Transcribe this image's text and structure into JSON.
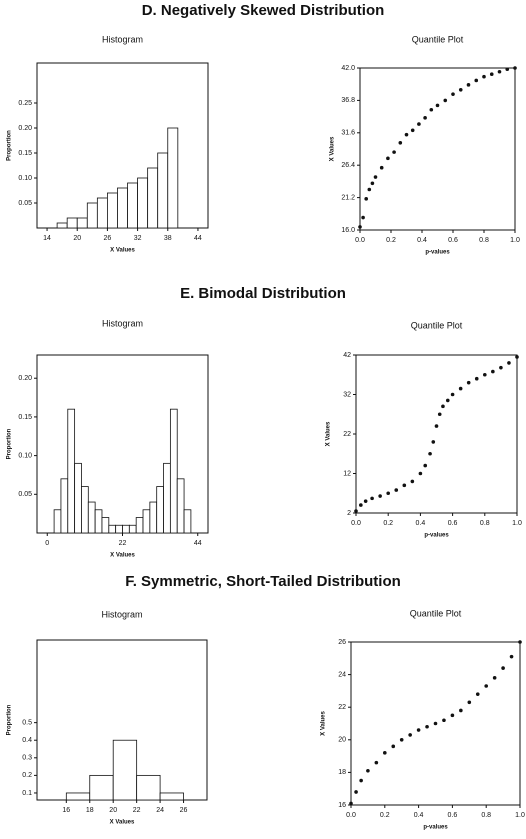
{
  "sections": [
    {
      "title": "D. Negatively Skewed Distribution"
    },
    {
      "title": "E. Bimodal Distribution"
    },
    {
      "title": "F. Symmetric, Short-Tailed Distribution"
    }
  ],
  "chart_data": [
    {
      "type": "histogram",
      "title": "Histogram",
      "x_label": "X Values",
      "y_label": "Proportion",
      "bins": [
        16,
        18,
        20,
        22,
        24,
        26,
        28,
        30,
        32,
        34,
        36,
        38,
        40
      ],
      "values": [
        0.01,
        0.02,
        0.02,
        0.05,
        0.06,
        0.07,
        0.08,
        0.09,
        0.1,
        0.12,
        0.15,
        0.2
      ],
      "xlim": [
        12,
        46
      ],
      "xticks": [
        14,
        20,
        26,
        32,
        38,
        44
      ],
      "ylim": [
        0,
        0.33
      ],
      "yticks": [
        0.05,
        {
          "value": 0.1,
          "label": "0.10"
        },
        0.15,
        {
          "value": 0.2,
          "label": "0.20"
        },
        0.25
      ],
      "color": "#ffffff"
    },
    {
      "type": "scatter",
      "title": "Quantile Plot",
      "x_label": "p-values",
      "y_label": "X Values",
      "x": [
        0,
        0.02,
        0.04,
        0.06,
        0.08,
        0.1,
        0.14,
        0.18,
        0.22,
        0.26,
        0.3,
        0.34,
        0.38,
        0.42,
        0.46,
        0.5,
        0.55,
        0.6,
        0.65,
        0.7,
        0.75,
        0.8,
        0.85,
        0.9,
        0.95,
        1
      ],
      "values": [
        16.5,
        18,
        21,
        22.5,
        23.5,
        24.5,
        26,
        27.5,
        28.5,
        30,
        31.3,
        32,
        33,
        34,
        35.3,
        36,
        36.8,
        37.8,
        38.5,
        39.3,
        40,
        40.6,
        41,
        41.4,
        41.8,
        42
      ],
      "xlim": [
        0,
        1
      ],
      "xticks": [
        {
          "value": 0,
          "label": "0.0"
        },
        0.2,
        0.4,
        0.6,
        0.8,
        {
          "value": 1,
          "label": "1.0"
        }
      ],
      "ylim": [
        16,
        42
      ],
      "yticks": [
        {
          "value": 16,
          "label": "16.0"
        },
        21.2,
        26.4,
        31.6,
        36.8,
        {
          "value": 42,
          "label": "42.0"
        }
      ],
      "color": "#111111"
    },
    {
      "type": "histogram",
      "title": "Histogram",
      "x_label": "X Values",
      "y_label": "Proportion",
      "bins": [
        2,
        4,
        6,
        8,
        10,
        12,
        14,
        16,
        18,
        20,
        22,
        24,
        26,
        28,
        30,
        32,
        34,
        36,
        38,
        40,
        42
      ],
      "values": [
        0.03,
        0.07,
        0.16,
        0.09,
        0.06,
        0.04,
        0.03,
        0.02,
        0.01,
        0.01,
        0.01,
        0.01,
        0.02,
        0.03,
        0.04,
        0.06,
        0.09,
        0.16,
        0.07,
        0.03
      ],
      "xlim": [
        -3,
        47
      ],
      "xticks": [
        0,
        22,
        44
      ],
      "ylim": [
        0,
        0.23
      ],
      "yticks": [
        0.05,
        {
          "value": 0.1,
          "label": "0.10"
        },
        0.15,
        {
          "value": 0.2,
          "label": "0.20"
        }
      ],
      "color": "#ffffff"
    },
    {
      "type": "scatter",
      "title": "Quantile Plot",
      "x_label": "p-values",
      "y_label": "X Values",
      "x": [
        0,
        0.03,
        0.06,
        0.1,
        0.15,
        0.2,
        0.25,
        0.3,
        0.35,
        0.4,
        0.43,
        0.46,
        0.48,
        0.5,
        0.52,
        0.54,
        0.57,
        0.6,
        0.65,
        0.7,
        0.75,
        0.8,
        0.85,
        0.9,
        0.95,
        1
      ],
      "values": [
        2.5,
        4,
        5,
        5.7,
        6.3,
        7,
        7.8,
        9,
        10,
        12,
        14,
        17,
        20,
        24,
        27,
        29,
        30.5,
        32,
        33.5,
        35,
        36,
        37,
        37.8,
        38.8,
        40,
        41.5
      ],
      "xlim": [
        0,
        1
      ],
      "xticks": [
        {
          "value": 0,
          "label": "0.0"
        },
        0.2,
        0.4,
        0.6,
        0.8,
        {
          "value": 1,
          "label": "1.0"
        }
      ],
      "ylim": [
        2,
        42
      ],
      "yticks": [
        2,
        12,
        22,
        32,
        42
      ],
      "color": "#111111"
    },
    {
      "type": "histogram",
      "title": "Histogram",
      "x_label": "X Values",
      "y_label": "Proportion",
      "bins": [
        16,
        18,
        20,
        22,
        24,
        26
      ],
      "values": [
        0.1,
        0.2,
        0.4,
        0.2,
        0.1
      ],
      "xlim": [
        13.5,
        28
      ],
      "xticks": [
        16,
        18,
        20,
        22,
        24,
        26
      ],
      "ylim": [
        0.06,
        0.97
      ],
      "yticks": [
        0.1,
        0.2,
        0.3,
        0.4,
        0.5
      ],
      "color": "#ffffff"
    },
    {
      "type": "scatter",
      "title": "Quantile Plot",
      "x_label": "p-values",
      "y_label": "X Values",
      "x": [
        0,
        0.03,
        0.06,
        0.1,
        0.15,
        0.2,
        0.25,
        0.3,
        0.35,
        0.4,
        0.45,
        0.5,
        0.55,
        0.6,
        0.65,
        0.7,
        0.75,
        0.8,
        0.85,
        0.9,
        0.95,
        1
      ],
      "values": [
        16.1,
        16.8,
        17.5,
        18.1,
        18.6,
        19.2,
        19.6,
        20,
        20.3,
        20.6,
        20.8,
        21,
        21.2,
        21.5,
        21.8,
        22.3,
        22.8,
        23.3,
        23.8,
        24.4,
        25.1,
        26
      ],
      "xlim": [
        0,
        1
      ],
      "xticks": [
        {
          "value": 0,
          "label": "0.0"
        },
        0.2,
        0.4,
        0.6,
        0.8,
        {
          "value": 1,
          "label": "1.0"
        }
      ],
      "ylim": [
        16,
        26
      ],
      "yticks": [
        16,
        18,
        20,
        22,
        24,
        26
      ],
      "color": "#111111"
    }
  ]
}
